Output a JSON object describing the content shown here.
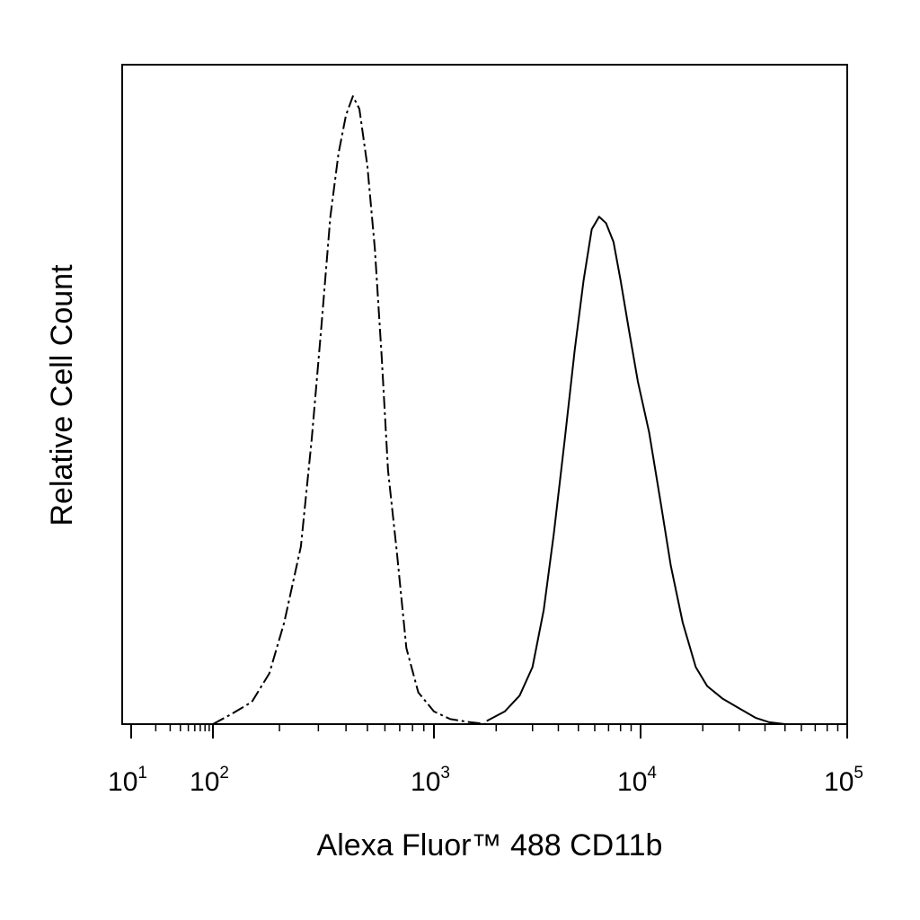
{
  "chart_data": {
    "type": "line",
    "xlabel": "Alexa Fluor™ 488 CD11b",
    "ylabel": "Relative Cell Count",
    "x_scale": "log",
    "xlim": [
      10,
      100000
    ],
    "ylim": [
      0,
      100
    ],
    "grid": false,
    "x_ticks": [
      {
        "base": "10",
        "exp": "1",
        "value": 10
      },
      {
        "base": "10",
        "exp": "2",
        "value": 100
      },
      {
        "base": "10",
        "exp": "3",
        "value": 1000
      },
      {
        "base": "10",
        "exp": "4",
        "value": 10000
      },
      {
        "base": "10",
        "exp": "5",
        "value": 100000
      }
    ],
    "series": [
      {
        "style": "dashed",
        "color": "#000000",
        "x": [
          100,
          120,
          150,
          180,
          210,
          250,
          280,
          310,
          340,
          370,
          400,
          430,
          460,
          500,
          540,
          580,
          620,
          680,
          750,
          850,
          1000,
          1200,
          1500,
          1800
        ],
        "y": [
          0,
          1.5,
          3.5,
          8,
          16,
          28,
          45,
          63,
          80,
          90,
          96,
          99,
          97,
          88,
          75,
          58,
          40,
          27,
          12,
          5,
          2,
          0.8,
          0.3,
          0
        ]
      },
      {
        "style": "solid",
        "color": "#000000",
        "x": [
          1800,
          2200,
          2600,
          3000,
          3400,
          3800,
          4300,
          4800,
          5300,
          5800,
          6300,
          6800,
          7400,
          8000,
          8800,
          9700,
          11000,
          12500,
          14000,
          16000,
          18500,
          21000,
          25000,
          30000,
          36000,
          42000,
          50000
        ],
        "y": [
          0.5,
          2,
          4.5,
          9,
          18,
          30,
          45,
          59,
          70,
          78,
          80,
          79,
          76,
          70,
          62,
          54,
          46,
          35,
          25,
          16,
          9,
          6,
          4,
          2.5,
          1,
          0.3,
          0
        ]
      }
    ]
  }
}
